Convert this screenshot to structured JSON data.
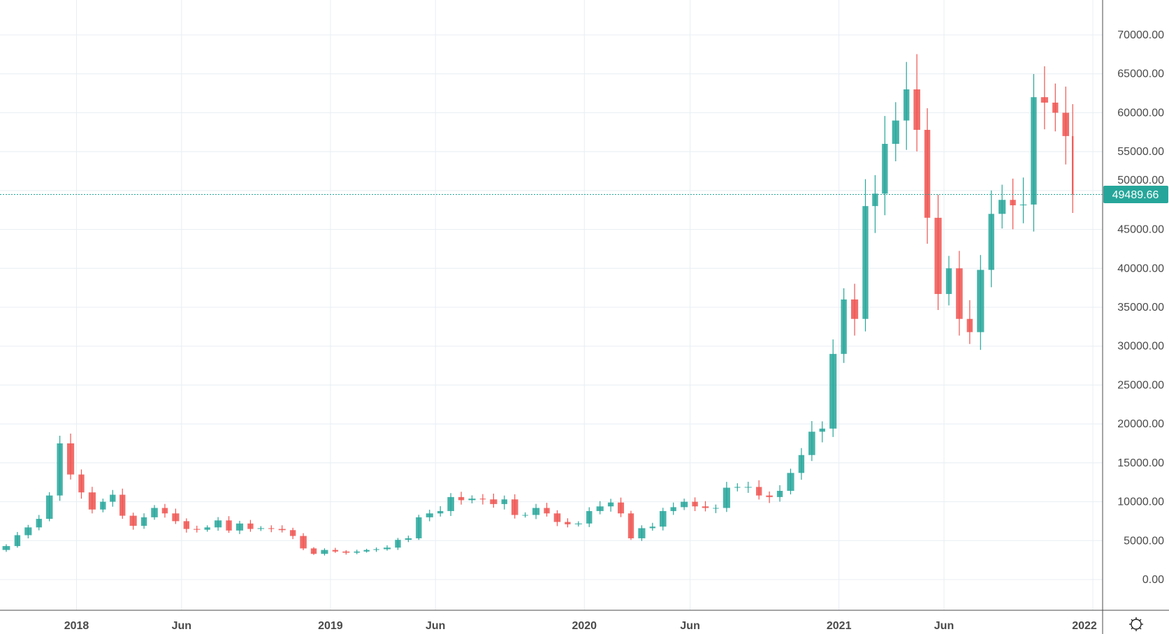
{
  "chart_data": {
    "type": "candlestick",
    "title": "",
    "xlabel": "",
    "ylabel": "",
    "ylim": [
      -3950,
      74490
    ],
    "xlim": [
      "2017-09-13",
      "2022-01-15"
    ],
    "grid": true,
    "y_ticks": [
      "0.00",
      "5000.00",
      "10000.00",
      "15000.00",
      "20000.00",
      "25000.00",
      "30000.00",
      "35000.00",
      "40000.00",
      "45000.00",
      "50000.00",
      "55000.00",
      "60000.00",
      "65000.00",
      "70000.00"
    ],
    "x_ticks": [
      {
        "date": "2018-01-01",
        "label": "2018"
      },
      {
        "date": "2018-06-01",
        "label": "Jun"
      },
      {
        "date": "2019-01-01",
        "label": "2019"
      },
      {
        "date": "2019-06-01",
        "label": "Jun"
      },
      {
        "date": "2020-01-01",
        "label": "2020"
      },
      {
        "date": "2020-06-01",
        "label": "Jun"
      },
      {
        "date": "2021-01-01",
        "label": "2021"
      },
      {
        "date": "2021-06-01",
        "label": "Jun"
      },
      {
        "date": "2022-01-01",
        "label": "2022"
      }
    ],
    "last_price": 49489.66,
    "last_price_label": "49489.66",
    "colors": {
      "up": "#26a69a",
      "down": "#ef5350",
      "grid": "#e8eef3",
      "axis": "#4a4a4a"
    },
    "closes": [
      [
        "2017-09-13",
        3800
      ],
      [
        "2017-10-01",
        4300
      ],
      [
        "2017-10-15",
        5700
      ],
      [
        "2017-11-01",
        6700
      ],
      [
        "2017-11-15",
        7800
      ],
      [
        "2017-12-01",
        10800
      ],
      [
        "2017-12-15",
        17500
      ],
      [
        "2018-01-01",
        13500
      ],
      [
        "2018-01-15",
        11200
      ],
      [
        "2018-02-01",
        9000
      ],
      [
        "2018-02-15",
        10000
      ],
      [
        "2018-03-01",
        10900
      ],
      [
        "2018-03-15",
        8200
      ],
      [
        "2018-04-01",
        6900
      ],
      [
        "2018-04-15",
        8000
      ],
      [
        "2018-05-01",
        9200
      ],
      [
        "2018-05-15",
        8500
      ],
      [
        "2018-06-01",
        7500
      ],
      [
        "2018-06-15",
        6500
      ],
      [
        "2018-07-01",
        6400
      ],
      [
        "2018-07-15",
        6700
      ],
      [
        "2018-08-01",
        7600
      ],
      [
        "2018-08-15",
        6300
      ],
      [
        "2018-09-01",
        7200
      ],
      [
        "2018-09-15",
        6500
      ],
      [
        "2018-10-01",
        6600
      ],
      [
        "2018-10-15",
        6500
      ],
      [
        "2018-11-01",
        6350
      ],
      [
        "2018-11-15",
        5600
      ],
      [
        "2018-12-01",
        4000
      ],
      [
        "2018-12-15",
        3300
      ],
      [
        "2019-01-01",
        3800
      ],
      [
        "2019-01-15",
        3600
      ],
      [
        "2019-02-01",
        3450
      ],
      [
        "2019-02-15",
        3600
      ],
      [
        "2019-03-01",
        3800
      ],
      [
        "2019-03-15",
        3900
      ],
      [
        "2019-04-01",
        4100
      ],
      [
        "2019-04-15",
        5100
      ],
      [
        "2019-05-01",
        5300
      ],
      [
        "2019-05-15",
        8000
      ],
      [
        "2019-06-01",
        8500
      ],
      [
        "2019-06-15",
        8800
      ],
      [
        "2019-07-01",
        10600
      ],
      [
        "2019-07-15",
        10200
      ],
      [
        "2019-08-01",
        10400
      ],
      [
        "2019-08-15",
        10300
      ],
      [
        "2019-09-01",
        9700
      ],
      [
        "2019-09-15",
        10300
      ],
      [
        "2019-10-01",
        8300
      ],
      [
        "2019-10-15",
        8300
      ],
      [
        "2019-11-01",
        9200
      ],
      [
        "2019-11-15",
        8500
      ],
      [
        "2019-12-01",
        7400
      ],
      [
        "2019-12-15",
        7100
      ],
      [
        "2020-01-01",
        7200
      ],
      [
        "2020-01-15",
        8800
      ],
      [
        "2020-02-01",
        9400
      ],
      [
        "2020-02-15",
        9900
      ],
      [
        "2020-03-01",
        8500
      ],
      [
        "2020-03-15",
        5300
      ],
      [
        "2020-04-01",
        6600
      ],
      [
        "2020-04-15",
        6800
      ],
      [
        "2020-05-01",
        8800
      ],
      [
        "2020-05-15",
        9300
      ],
      [
        "2020-06-01",
        10000
      ],
      [
        "2020-06-15",
        9400
      ],
      [
        "2020-07-01",
        9200
      ],
      [
        "2020-07-15",
        9200
      ],
      [
        "2020-08-01",
        11800
      ],
      [
        "2020-08-15",
        11900
      ],
      [
        "2020-09-01",
        11900
      ],
      [
        "2020-09-15",
        10800
      ],
      [
        "2020-10-01",
        10600
      ],
      [
        "2020-10-15",
        11400
      ],
      [
        "2020-11-01",
        13700
      ],
      [
        "2020-11-15",
        16000
      ],
      [
        "2020-12-01",
        19000
      ],
      [
        "2020-12-15",
        19400
      ],
      [
        "2021-01-01",
        29000
      ],
      [
        "2021-01-15",
        36000
      ],
      [
        "2021-02-01",
        33500
      ],
      [
        "2021-02-15",
        48000
      ],
      [
        "2021-03-01",
        49600
      ],
      [
        "2021-03-15",
        56000
      ],
      [
        "2021-04-01",
        59000
      ],
      [
        "2021-04-15",
        63000
      ],
      [
        "2021-05-01",
        57800
      ],
      [
        "2021-05-15",
        46500
      ],
      [
        "2021-06-01",
        36700
      ],
      [
        "2021-06-15",
        40000
      ],
      [
        "2021-07-01",
        33500
      ],
      [
        "2021-07-15",
        31800
      ],
      [
        "2021-08-01",
        39800
      ],
      [
        "2021-08-15",
        47000
      ],
      [
        "2021-09-01",
        48800
      ],
      [
        "2021-09-15",
        48100
      ],
      [
        "2021-10-01",
        48200
      ],
      [
        "2021-10-15",
        62000
      ],
      [
        "2021-11-01",
        61300
      ],
      [
        "2021-11-15",
        60000
      ],
      [
        "2021-12-01",
        57000
      ],
      [
        "2021-12-05",
        49489.66
      ]
    ]
  },
  "toolbar": {
    "settings_icon": "gear-icon"
  }
}
